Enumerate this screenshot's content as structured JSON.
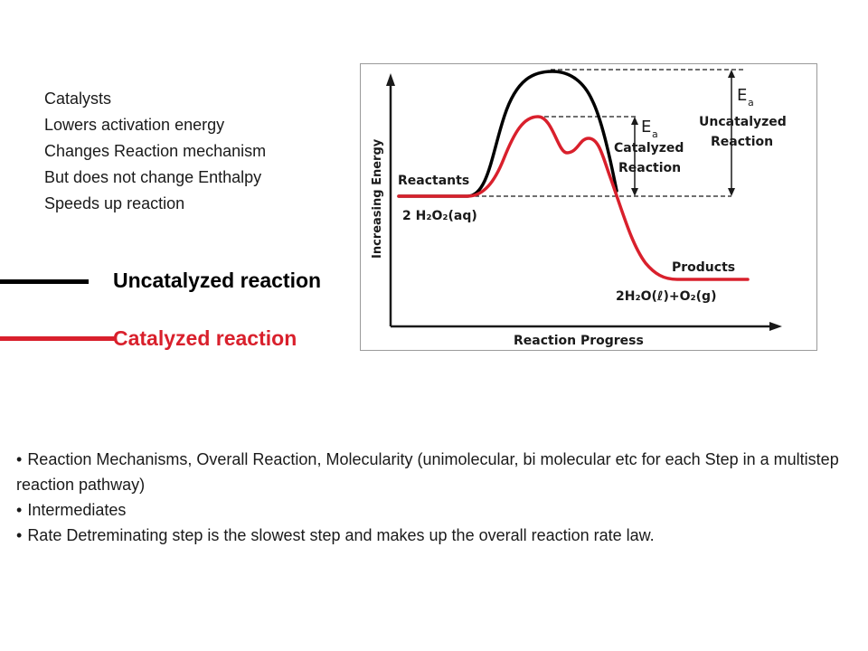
{
  "notes": [
    "Catalysts",
    "Lowers activation energy",
    "Changes Reaction mechanism",
    "But does not change Enthalpy",
    "Speeds up reaction"
  ],
  "legend": [
    {
      "label": "Uncatalyzed reaction",
      "color": "#000000"
    },
    {
      "label": "Catalyzed reaction",
      "color": "#d9202c"
    }
  ],
  "diagram": {
    "y_axis_label": "Increasing Energy",
    "x_axis_label": "Reaction Progress",
    "reactants_label": "Reactants",
    "reactants_formula": "2 H₂O₂(aq)",
    "products_label": "Products",
    "products_formula": "2H₂O(ℓ)+O₂(g)",
    "ea_catalyzed_symbol": "E",
    "ea_catalyzed_sub": "a",
    "ea_catalyzed_line1": "Catalyzed",
    "ea_catalyzed_line2": "Reaction",
    "ea_uncatalyzed_symbol": "E",
    "ea_uncatalyzed_sub": "a",
    "ea_uncatalyzed_line1": "Uncatalyzed",
    "ea_uncatalyzed_line2": "Reaction",
    "colors": {
      "uncatalyzed": "#000000",
      "catalyzed": "#d9202c",
      "axis": "#1a1a1a"
    }
  },
  "bullets": [
    "Reaction Mechanisms, Overall Reaction, Molecularity (unimolecular, bi molecular etc for each Step in a multistep reaction pathway)",
    "Intermediates",
    "Rate Detreminating step is the slowest step and makes up the overall reaction rate law."
  ]
}
